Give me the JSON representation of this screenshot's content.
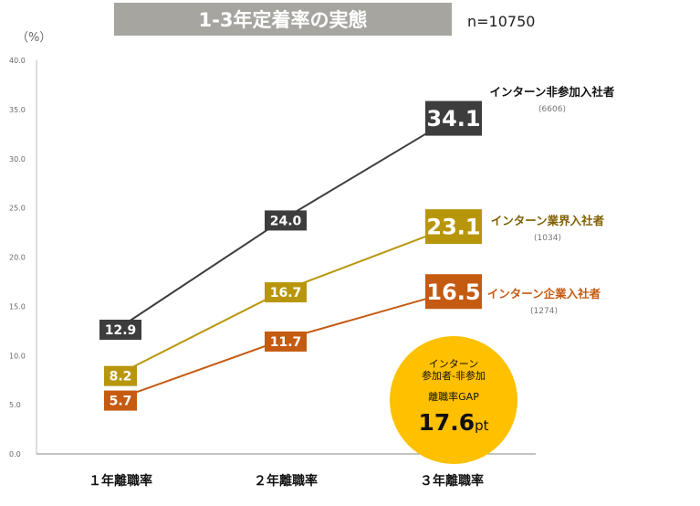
{
  "chart_data": {
    "type": "line",
    "title": "1-3年定着率の実態",
    "sample": "n=10750",
    "ylabel": "（%）",
    "ylim": [
      0,
      40
    ],
    "yticks": [
      "0.0",
      "5.0",
      "10.0",
      "15.0",
      "20.0",
      "25.0",
      "30.0",
      "35.0",
      "40.0"
    ],
    "categories": [
      "１年離職率",
      "２年離職率",
      "３年離職率"
    ],
    "grid": false,
    "series": [
      {
        "name": "インターン非参加入社者",
        "count": "(6606)",
        "color": "#3d3d3d",
        "values": [
          12.9,
          24.0,
          34.1
        ],
        "labels": [
          "12.9",
          "24.0",
          "34.1"
        ]
      },
      {
        "name": "インターン業界入社者",
        "count": "(1034)",
        "color": "#b8960c",
        "values": [
          8.2,
          16.7,
          23.1
        ],
        "labels": [
          "8.2",
          "16.7",
          "23.1"
        ]
      },
      {
        "name": "インターン企業入社者",
        "count": "(1274)",
        "color": "#c55a11",
        "values": [
          5.7,
          11.7,
          16.5
        ],
        "labels": [
          "5.7",
          "11.7",
          "16.5"
        ]
      }
    ],
    "annotation": {
      "line1": "インターン",
      "line2": "参加者-非参加",
      "line3": "離職率GAP",
      "value": "17.6",
      "unit": "pt",
      "color": "#ffc000"
    }
  }
}
